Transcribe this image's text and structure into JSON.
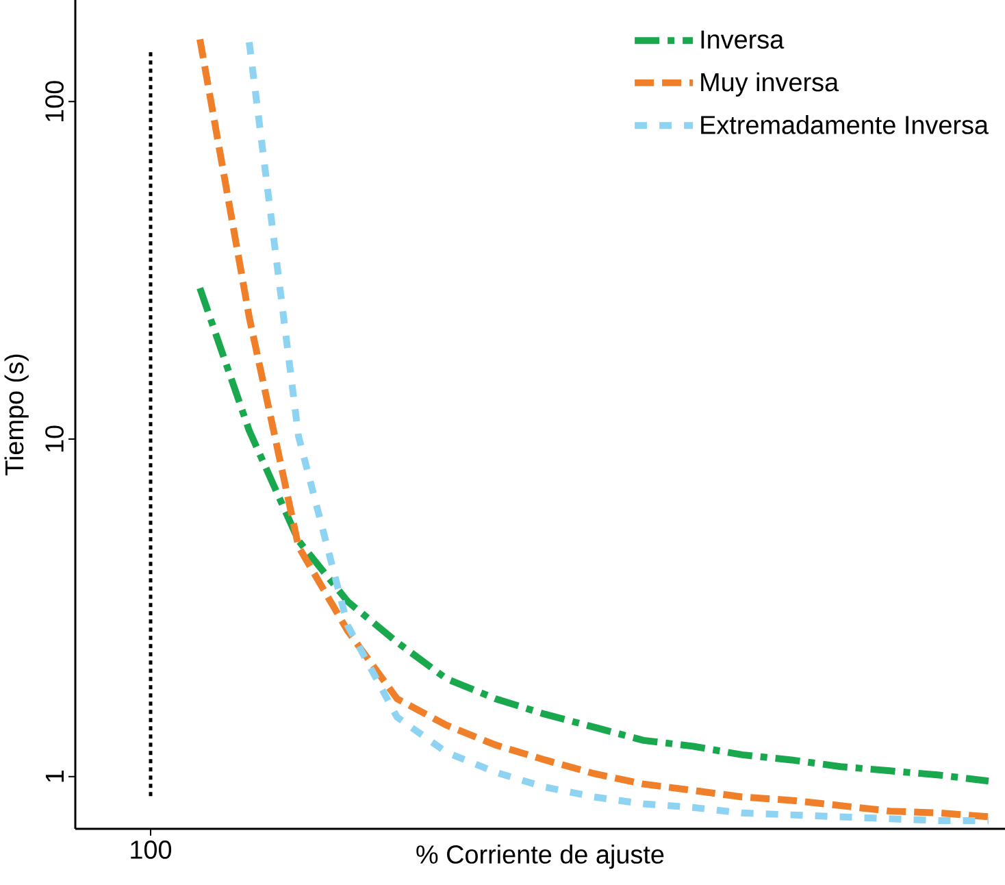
{
  "chart_data": {
    "type": "line",
    "xlabel": "% Corriente de ajuste",
    "ylabel": "Tiempo (s)",
    "categories": [
      "100",
      null,
      null,
      null,
      null,
      null,
      null,
      null,
      null,
      null,
      null,
      null,
      null,
      null,
      null,
      null,
      null,
      null
    ],
    "log": "y",
    "ylim": [
      0.7,
      200
    ],
    "yticks": [
      1,
      10,
      100
    ],
    "legend": "top right",
    "marker": "none",
    "ref_lines": [
      {
        "axis": "x",
        "value": "100",
        "color": "#000000",
        "line_style": "dotted"
      }
    ],
    "series": [
      {
        "name": "Inversa",
        "color": "#1aa84f",
        "line_style": "dashdot",
        "values": [
          null,
          28,
          10.6,
          5.0,
          3.3,
          2.5,
          1.95,
          1.7,
          1.53,
          1.4,
          1.28,
          1.23,
          1.16,
          1.12,
          1.07,
          1.04,
          1.01,
          0.97
        ]
      },
      {
        "name": "Muy inversa",
        "color": "#f07f2a",
        "line_style": "dashed",
        "values": [
          null,
          153,
          23,
          4.8,
          2.7,
          1.7,
          1.42,
          1.24,
          1.12,
          1.02,
          0.95,
          0.91,
          0.87,
          0.85,
          0.82,
          0.79,
          0.78,
          0.76
        ]
      },
      {
        "name": "Extremadamente Inversa",
        "color": "#8fd3f2",
        "line_style": "loosely dashed",
        "values": [
          null,
          null,
          150,
          10.2,
          2.8,
          1.5,
          1.18,
          1.03,
          0.93,
          0.87,
          0.83,
          0.81,
          0.78,
          0.77,
          0.76,
          0.75,
          0.74,
          0.74
        ]
      }
    ]
  }
}
